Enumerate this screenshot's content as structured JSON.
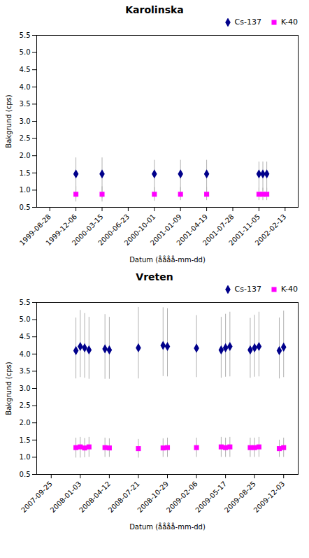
{
  "chart_data": [
    {
      "type": "scatter",
      "title": "Karolinska",
      "x_label": "Datum (åååå-mm-dd)",
      "y_label": "Bakgrund (cps)",
      "xlim": [
        -0.5,
        9.5
      ],
      "xticks": [
        {
          "value": 0,
          "label": "1999-08-28"
        },
        {
          "value": 1,
          "label": "1999-12-06"
        },
        {
          "value": 2,
          "label": "2000-03-15"
        },
        {
          "value": 3,
          "label": "2000-06-23"
        },
        {
          "value": 4,
          "label": "2000-10-01"
        },
        {
          "value": 5,
          "label": "2001-01-09"
        },
        {
          "value": 6,
          "label": "2001-04-19"
        },
        {
          "value": 7,
          "label": "2001-07-28"
        },
        {
          "value": 8,
          "label": "2001-11-05"
        },
        {
          "value": 9,
          "label": "2002-02-13"
        }
      ],
      "ylim": [
        0.5,
        5.5
      ],
      "yticks": [
        0.5,
        {
          "value": 1.0,
          "label": "1.0"
        },
        1.5,
        {
          "value": 2.0,
          "label": "2.0"
        },
        2.5,
        {
          "value": 3.0,
          "label": "3.0"
        },
        3.5,
        {
          "value": 4.0,
          "label": "4.0"
        },
        4.5,
        {
          "value": 5.0,
          "label": "5.0"
        },
        5.5
      ],
      "grid": false,
      "legend": "upper right",
      "series": [
        {
          "name": "Cs-137",
          "color": "#00008B",
          "marker": "diamond",
          "x": [
            1,
            2,
            4,
            5,
            6,
            8,
            8.15,
            8.3
          ],
          "values": [
            1.47,
            1.47,
            1.47,
            1.47,
            1.47,
            1.47,
            1.47,
            1.47
          ],
          "error_low": [
            0.7,
            0.7,
            0.6,
            0.6,
            0.6,
            0.5,
            0.5,
            0.5
          ],
          "error_high": [
            0.47,
            0.47,
            0.4,
            0.4,
            0.4,
            0.35,
            0.35,
            0.35
          ]
        },
        {
          "name": "K-40",
          "color": "#FF00FF",
          "marker": "square",
          "x": [
            1,
            2,
            4,
            5,
            6,
            8,
            8.15,
            8.3
          ],
          "values": [
            0.88,
            0.88,
            0.88,
            0.88,
            0.88,
            0.88,
            0.88,
            0.88
          ],
          "error_low": [
            0.22,
            0.22,
            0.2,
            0.18,
            0.18,
            0.18,
            0.18,
            0.18
          ],
          "error_high": [
            0.22,
            0.22,
            0.2,
            0.2,
            0.2,
            0.18,
            0.18,
            0.18
          ]
        }
      ]
    },
    {
      "type": "scatter",
      "title": "Vreten",
      "x_label": "Datum (åååå-mm-dd)",
      "y_label": "Bakgrund (cps)",
      "xlim": [
        -0.5,
        8.5
      ],
      "xticks": [
        {
          "value": 0,
          "label": "2007-09-25"
        },
        {
          "value": 1,
          "label": "2008-01-03"
        },
        {
          "value": 2,
          "label": "2008-04-12"
        },
        {
          "value": 3,
          "label": "2008-07-21"
        },
        {
          "value": 4,
          "label": "2008-10-29"
        },
        {
          "value": 5,
          "label": "2009-02-06"
        },
        {
          "value": 6,
          "label": "2009-05-17"
        },
        {
          "value": 7,
          "label": "2009-08-25"
        },
        {
          "value": 8,
          "label": "2009-12-03"
        }
      ],
      "ylim": [
        0.5,
        5.5
      ],
      "yticks": [
        0.5,
        {
          "value": 1.0,
          "label": "1.0"
        },
        1.5,
        {
          "value": 2.0,
          "label": "2.0"
        },
        2.5,
        {
          "value": 3.0,
          "label": "3.0"
        },
        3.5,
        {
          "value": 4.0,
          "label": "4.0"
        },
        4.5,
        {
          "value": 5.0,
          "label": "5.0"
        },
        5.5
      ],
      "grid": false,
      "legend": "upper right",
      "series": [
        {
          "name": "Cs-137",
          "color": "#00008B",
          "marker": "diamond",
          "x": [
            0.85,
            1.0,
            1.15,
            1.3,
            1.85,
            2.0,
            3.0,
            3.85,
            4.0,
            5.0,
            5.85,
            6.0,
            6.15,
            6.85,
            7.0,
            7.15,
            7.85,
            8.0
          ],
          "values": [
            4.1,
            4.22,
            4.18,
            4.12,
            4.15,
            4.12,
            4.18,
            4.25,
            4.22,
            4.17,
            4.12,
            4.18,
            4.22,
            4.12,
            4.18,
            4.22,
            4.1,
            4.2
          ],
          "error_low": [
            0.82,
            0.9,
            0.88,
            0.85,
            0.88,
            0.85,
            0.9,
            0.9,
            0.88,
            0.85,
            0.82,
            0.85,
            0.88,
            0.82,
            0.85,
            0.88,
            0.82,
            0.88
          ],
          "error_high": [
            0.95,
            1.05,
            1.0,
            0.95,
            1.0,
            0.95,
            1.18,
            1.1,
            1.1,
            0.95,
            0.95,
            0.98,
            1.0,
            0.92,
            0.95,
            1.0,
            0.95,
            1.05
          ]
        },
        {
          "name": "K-40",
          "color": "#FF00FF",
          "marker": "square",
          "x": [
            0.85,
            1.0,
            1.15,
            1.3,
            1.85,
            2.0,
            3.0,
            3.85,
            4.0,
            5.0,
            5.85,
            6.0,
            6.15,
            6.85,
            7.0,
            7.15,
            7.85,
            8.0
          ],
          "values": [
            1.28,
            1.3,
            1.27,
            1.3,
            1.28,
            1.27,
            1.25,
            1.27,
            1.28,
            1.28,
            1.3,
            1.28,
            1.3,
            1.28,
            1.28,
            1.3,
            1.25,
            1.28
          ],
          "error_low": [
            0.3,
            0.32,
            0.28,
            0.3,
            0.28,
            0.27,
            0.27,
            0.27,
            0.28,
            0.28,
            0.3,
            0.28,
            0.3,
            0.28,
            0.28,
            0.3,
            0.25,
            0.28
          ],
          "error_high": [
            0.28,
            0.28,
            0.28,
            0.28,
            0.28,
            0.27,
            0.27,
            0.27,
            0.28,
            0.28,
            0.28,
            0.28,
            0.28,
            0.28,
            0.28,
            0.28,
            0.25,
            0.28
          ]
        }
      ]
    }
  ]
}
